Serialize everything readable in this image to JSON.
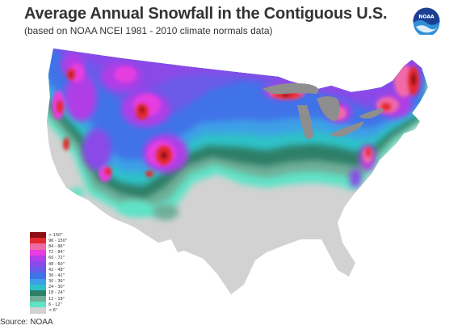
{
  "title": "Average Annual Snowfall in the Contiguous U.S.",
  "subtitle": "(based on NOAA NCEI 1981 - 2010 climate normals data)",
  "logo": {
    "text": "NOAA",
    "icon": "noaa-logo-icon",
    "colors": [
      "#1c3f94",
      "#2f8fd6"
    ]
  },
  "legend": [
    {
      "label": "> 150\"",
      "color": "#8b0f14"
    },
    {
      "label": "96 - 150\"",
      "color": "#e32a2e"
    },
    {
      "label": "84 - 96\"",
      "color": "#f06aa8"
    },
    {
      "label": "72 - 84\"",
      "color": "#e63ce0"
    },
    {
      "label": "60 - 72\"",
      "color": "#b13ee6"
    },
    {
      "label": "48 - 60\"",
      "color": "#8a4ae8"
    },
    {
      "label": "42 - 48\"",
      "color": "#6a5ae8"
    },
    {
      "label": "36 - 42\"",
      "color": "#3f73e8"
    },
    {
      "label": "30 - 36\"",
      "color": "#3da0e6"
    },
    {
      "label": "24 - 30\"",
      "color": "#2fc1c8"
    },
    {
      "label": "18 - 24\"",
      "color": "#2e7f68"
    },
    {
      "label": "12 - 18\"",
      "color": "#6fae98"
    },
    {
      "label": "6 - 12\"",
      "color": "#5fe3c6"
    },
    {
      "label": "< 6\"",
      "color": "#d2d2d2"
    }
  ],
  "source": "Source: NOAA"
}
